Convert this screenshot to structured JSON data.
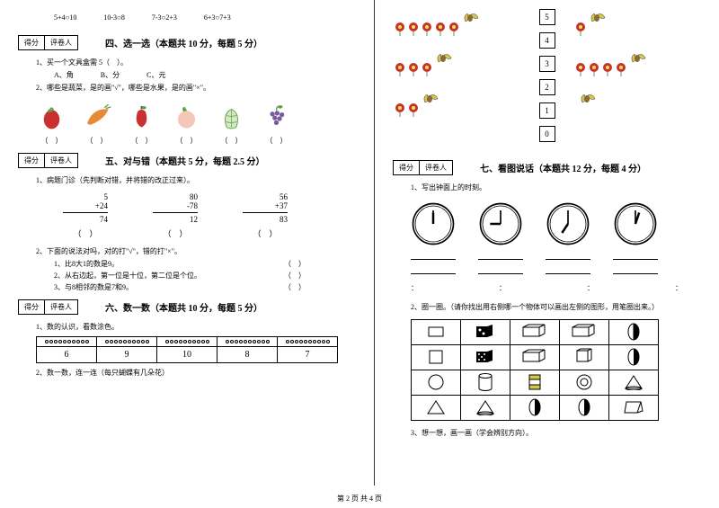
{
  "expressions": [
    "5+4○10",
    "10-3○8",
    "7-3○2+3",
    "6+3○7+3"
  ],
  "scorebox": {
    "score": "得分",
    "grader": "评卷人"
  },
  "sec4": {
    "title": "四、选一选（本题共 10 分，每题 5 分）",
    "q1": "1、买一个文具盒需 5（　）。",
    "opts": [
      "A、角",
      "B、分",
      "C、元"
    ],
    "q2": "2、哪些是蔬菜，是的画\"√\"，哪些是水果，是的画\"×\"。",
    "blanks": [
      "（　）",
      "（　）",
      "（　）",
      "（　）",
      "（　）",
      "（　）"
    ]
  },
  "sec5": {
    "title": "五、对与错（本题共 5 分，每题 2.5 分）",
    "q1": "1、病题门诊（先判断对错，并将错的改正过来）。",
    "q2": "2、下面的说法对吗，对的打\"√\"，错的打\"×\"。",
    "sub1": "1、比8大1的数是9。",
    "sub2": "2、从右边起，第一位是十位，第二位是个位。",
    "sub3": "3、与8相邻的数是7和9。",
    "paren": "（　）",
    "math": [
      {
        "a": "5",
        "b": "+24",
        "r": "74"
      },
      {
        "a": "80",
        "b": "-78",
        "r": "12"
      },
      {
        "a": "56",
        "b": "+37",
        "r": "83"
      }
    ]
  },
  "sec6": {
    "title": "六、数一数（本题共 10 分，每题 5 分）",
    "q1": "1、数的认识，看数涂色。",
    "q2": "2、数一数，连一连（每只蝴蝶有几朵花）",
    "nums": [
      "6",
      "9",
      "10",
      "8",
      "7"
    ]
  },
  "sec7": {
    "title": "七、看图说话（本题共 12 分，每题 4 分）",
    "q1": "1、写出钟面上的时刻。",
    "q2": "2、圈一圈。（请你找出用右侧哪一个物体可以画出左侧的图形，用笔圈出来。）",
    "q3": "3、想一想，画一画（学会辨别方向）。",
    "colon": "："
  },
  "numcol": [
    "5",
    "4",
    "3",
    "2",
    "1",
    "0"
  ],
  "footer": "第 2 页 共 4 页",
  "colors": {
    "red": "#c93030",
    "green": "#5a9e3e",
    "orange": "#e8893a",
    "purple": "#7a5a9e",
    "peach": "#f4c8b8",
    "yellow": "#d4c84a"
  }
}
